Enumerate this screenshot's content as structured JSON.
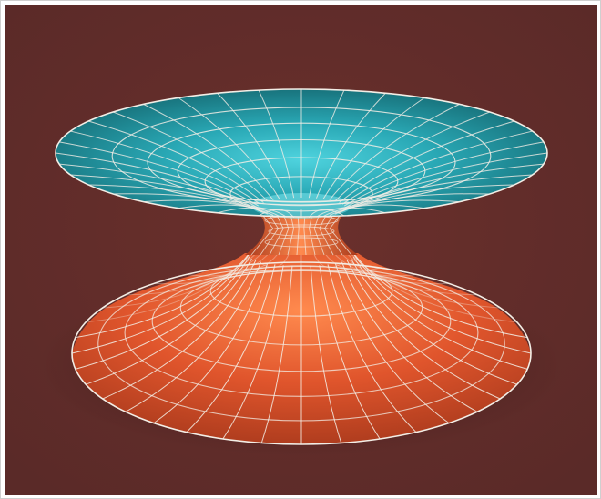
{
  "figure": {
    "subject": "wormhole-surface",
    "colors": {
      "background": "#5a2a28",
      "top_funnel_light": "#4fd3de",
      "top_funnel_mid": "#2aa9b6",
      "top_funnel_dark": "#156a73",
      "bottom_funnel_light": "#ff8a4e",
      "bottom_funnel_mid": "#e0552c",
      "bottom_funnel_dark": "#a8391c",
      "grid_lines": "#f3eee6",
      "frame": "#ffffff"
    },
    "grid": {
      "radial_lines": 36,
      "rings_per_funnel": 5
    }
  }
}
